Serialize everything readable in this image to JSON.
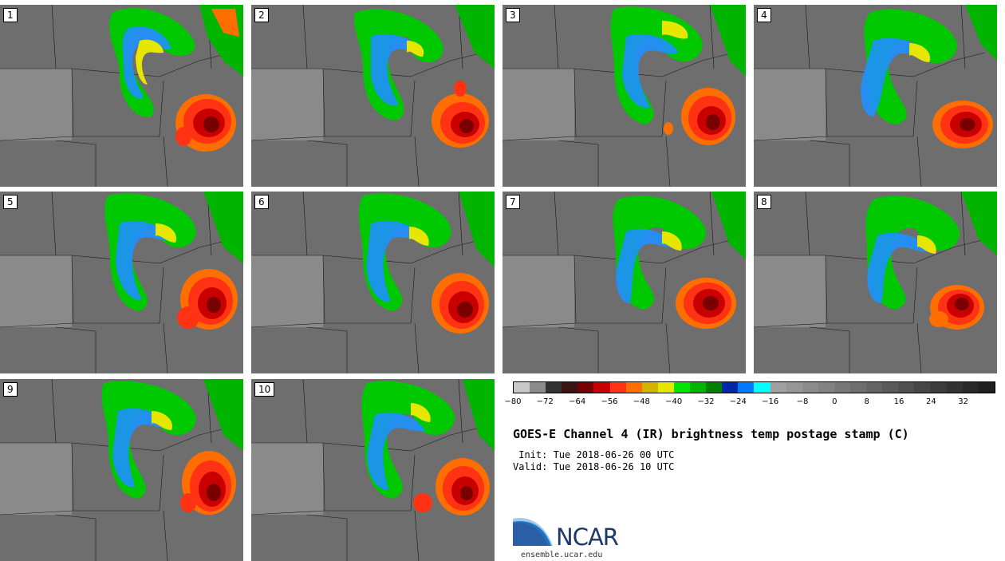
{
  "title": "GOES-E Channel 4 (IR) brightness temp postage stamp (C)",
  "init_line": " Init: Tue 2018-06-26 00 UTC",
  "valid_line": "Valid: Tue 2018-06-26 10 UTC",
  "logo_text": "NCAR",
  "website": "ensemble.ucar.edu",
  "panels": [
    "1",
    "2",
    "3",
    "4",
    "5",
    "6",
    "7",
    "8",
    "9",
    "10"
  ],
  "colorbar": {
    "colors": [
      "#c8c8c8",
      "#8c8c8c",
      "#323232",
      "#3c1414",
      "#780000",
      "#c80000",
      "#ff3214",
      "#ff6e00",
      "#d2b400",
      "#e6e600",
      "#00e600",
      "#00b400",
      "#008200",
      "#0028aa",
      "#0078ff",
      "#00ffff",
      "#a0a0a0",
      "#969696",
      "#8c8c8c",
      "#828282",
      "#787878",
      "#6e6e6e",
      "#646464",
      "#5a5a5a",
      "#505050",
      "#464646",
      "#3c3c3c",
      "#323232",
      "#282828",
      "#1e1e1e"
    ],
    "tick_labels": [
      "−80",
      "−72",
      "−64",
      "−56",
      "−48",
      "−40",
      "−32",
      "−24",
      "−16",
      "−8",
      "0",
      "8",
      "16",
      "24",
      "32"
    ]
  }
}
